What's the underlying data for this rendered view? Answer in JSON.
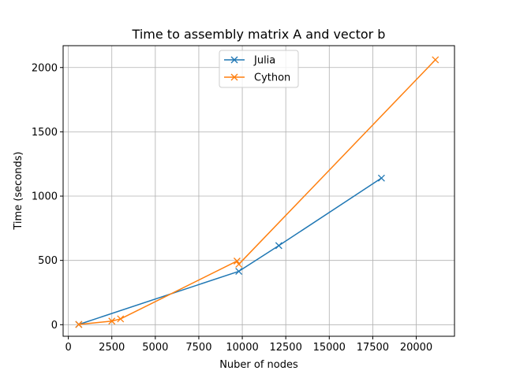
{
  "chart_data": {
    "type": "line",
    "title": "Time to assembly matrix A and vector b",
    "xlabel": "Nuber of nodes",
    "ylabel": "Time (seconds)",
    "xlim": [
      -300,
      22200
    ],
    "ylim": [
      -90,
      2170
    ],
    "xticks": [
      0,
      2500,
      5000,
      7500,
      10000,
      12500,
      15000,
      17500,
      20000
    ],
    "xtick_labels": [
      "0",
      "2500",
      "5000",
      "7500",
      "10000",
      "12500",
      "15000",
      "17500",
      "20000"
    ],
    "yticks": [
      0,
      500,
      1000,
      1500,
      2000
    ],
    "ytick_labels": [
      "0",
      "500",
      "1000",
      "1500",
      "2000"
    ],
    "grid": true,
    "legend_position": "top-center",
    "marker": "x",
    "series": [
      {
        "name": "Julia",
        "color": "#1f77b4",
        "x": [
          600,
          9800,
          12100,
          18000
        ],
        "y": [
          2,
          415,
          615,
          1140
        ]
      },
      {
        "name": "Cython",
        "color": "#ff7f0e",
        "x": [
          600,
          2500,
          3000,
          9700,
          9800,
          21100
        ],
        "y": [
          2,
          28,
          45,
          495,
          470,
          2060
        ]
      }
    ]
  }
}
